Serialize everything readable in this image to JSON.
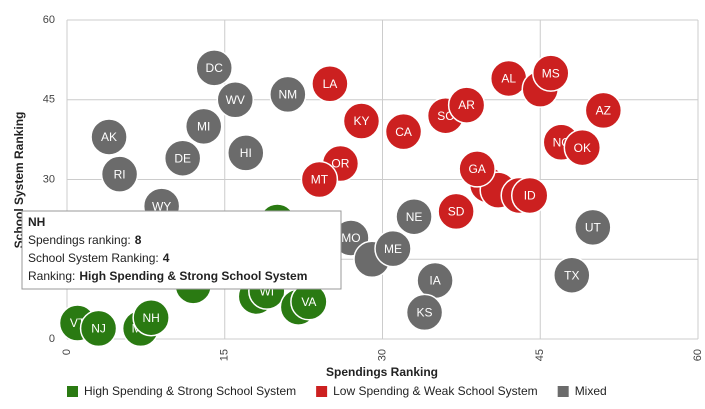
{
  "chart_data": {
    "type": "bubble",
    "xlabel": "Spendings Ranking",
    "ylabel": "School System Ranking",
    "xlim": [
      0,
      60
    ],
    "ylim": [
      0,
      60
    ],
    "xticks": [
      0,
      15,
      30,
      45,
      60
    ],
    "yticks": [
      0,
      15,
      30,
      45,
      60
    ],
    "grid": true,
    "legend": "bottom",
    "series": [
      {
        "name": "Mixed",
        "color": "#6b6b6b",
        "points": [
          {
            "label": "DC",
            "x": 14,
            "y": 51
          },
          {
            "label": "WV",
            "x": 16,
            "y": 45
          },
          {
            "label": "NM",
            "x": 21,
            "y": 46
          },
          {
            "label": "AK",
            "x": 4,
            "y": 38
          },
          {
            "label": "MI",
            "x": 13,
            "y": 40
          },
          {
            "label": "RI",
            "x": 5,
            "y": 31
          },
          {
            "label": "DE",
            "x": 11,
            "y": 34
          },
          {
            "label": "HI",
            "x": 17,
            "y": 35
          },
          {
            "label": "WY",
            "x": 9,
            "y": 25
          },
          {
            "label": "MO",
            "x": 27,
            "y": 19
          },
          {
            "label": null,
            "x": 29,
            "y": 15
          },
          {
            "label": "ME",
            "x": 31,
            "y": 17
          },
          {
            "label": "NE",
            "x": 33,
            "y": 23
          },
          {
            "label": "UT",
            "x": 50,
            "y": 21
          },
          {
            "label": "IA",
            "x": 35,
            "y": 11
          },
          {
            "label": "TX",
            "x": 48,
            "y": 12
          },
          {
            "label": "KS",
            "x": 34,
            "y": 5
          }
        ]
      },
      {
        "name": "Low Spending & Weak School System",
        "color": "#cc2020",
        "points": [
          {
            "label": "LA",
            "x": 25,
            "y": 48
          },
          {
            "label": "KY",
            "x": 28,
            "y": 41
          },
          {
            "label": "CA",
            "x": 32,
            "y": 39
          },
          {
            "label": "OR",
            "x": 26,
            "y": 33
          },
          {
            "label": "MT",
            "x": 24,
            "y": 30
          },
          {
            "label": "SC",
            "x": 36,
            "y": 42
          },
          {
            "label": "AR",
            "x": 38,
            "y": 44
          },
          {
            "label": "AL",
            "x": 42,
            "y": 49
          },
          {
            "label": null,
            "x": 45,
            "y": 47
          },
          {
            "label": "MS",
            "x": 46,
            "y": 50
          },
          {
            "label": "AZ",
            "x": 51,
            "y": 43
          },
          {
            "label": "NC",
            "x": 47,
            "y": 37
          },
          {
            "label": "OK",
            "x": 49,
            "y": 36
          },
          {
            "label": null,
            "x": 40,
            "y": 29
          },
          {
            "label": null,
            "x": 41,
            "y": 28
          },
          {
            "label": null,
            "x": 43,
            "y": 27
          },
          {
            "label": "GA",
            "x": 39,
            "y": 32
          },
          {
            "label": "ID",
            "x": 44,
            "y": 27
          },
          {
            "label": "SD",
            "x": 37,
            "y": 24
          }
        ]
      },
      {
        "name": "High Spending & Strong School System",
        "color": "#2a7a12",
        "points": [
          {
            "label": "VT",
            "x": 1,
            "y": 3
          },
          {
            "label": "NJ",
            "x": 3,
            "y": 2
          },
          {
            "label": "MA",
            "x": 7,
            "y": 2
          },
          {
            "label": null,
            "x": 12,
            "y": 10
          },
          {
            "label": null,
            "x": 20,
            "y": 22
          },
          {
            "label": null,
            "x": 18,
            "y": 8
          },
          {
            "label": "WI",
            "x": 19,
            "y": 9
          },
          {
            "label": null,
            "x": 22,
            "y": 6
          },
          {
            "label": "VA",
            "x": 23,
            "y": 7
          },
          {
            "label": "NH",
            "x": 8,
            "y": 4
          }
        ]
      }
    ],
    "legend_order": [
      2,
      1,
      0
    ],
    "tooltip": {
      "title": "NH",
      "rows": [
        {
          "label": "Spendings ranking:",
          "value": 8
        },
        {
          "label": "School System Ranking:",
          "value": 4
        },
        {
          "label": "Ranking:",
          "value": "High Spending & Strong School System"
        }
      ]
    }
  }
}
